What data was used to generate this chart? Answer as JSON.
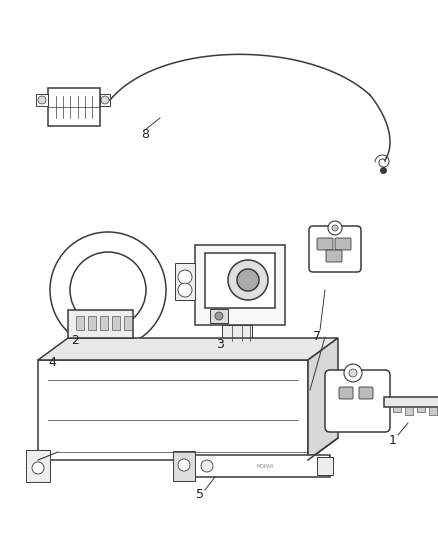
{
  "bg_color": "#ffffff",
  "line_color": "#3a3a3a",
  "label_color": "#222222",
  "fig_width": 4.38,
  "fig_height": 5.33,
  "dpi": 100
}
